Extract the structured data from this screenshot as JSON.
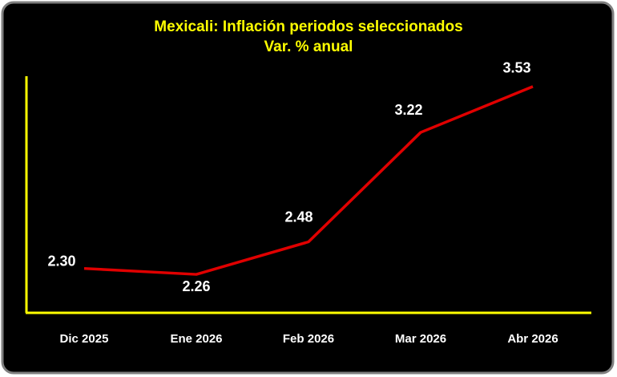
{
  "chart_data": {
    "type": "line",
    "title": "Mexicali: Inflación periodos seleccionados",
    "subtitle": "Var. % anual",
    "categories": [
      "Dic 2025",
      "Ene 2026",
      "Feb 2026",
      "Mar 2026",
      "Abr 2026"
    ],
    "values": [
      2.3,
      2.26,
      2.48,
      3.22,
      3.53
    ],
    "value_labels": [
      "2.30",
      "2.26",
      "2.48",
      "3.22",
      "3.53"
    ],
    "color": "#e00000",
    "axis_color": "#ffff00",
    "ylim": [
      2.0,
      3.6
    ]
  }
}
